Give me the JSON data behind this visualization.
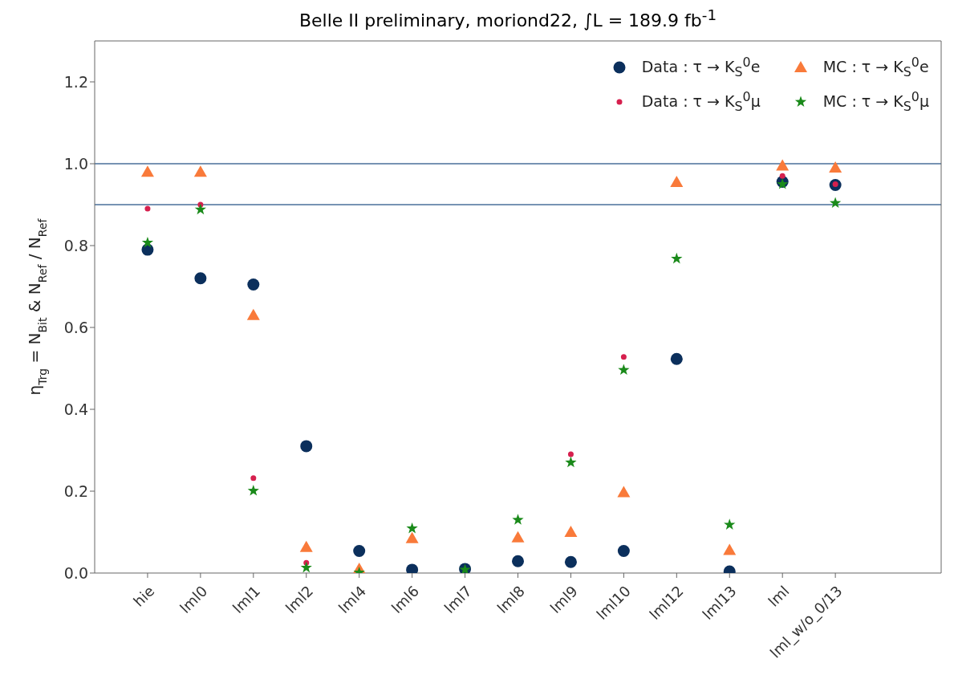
{
  "chart_data": {
    "type": "scatter",
    "title": "Belle II preliminary, moriond22, ∫L = 189.9 fb$^{-1}$",
    "ylabel": "η$_{Trg}$ = N$_{Bit}$ & N$_{Ref}$ / N$_{Ref}$",
    "categories": [
      "hie",
      "lml0",
      "lml1",
      "lml2",
      "lml4",
      "lml6",
      "lml7",
      "lml8",
      "lml9",
      "lml10",
      "lml12",
      "lml13",
      "lml",
      "lml_w/o_0/13"
    ],
    "ylim": [
      0,
      1.3
    ],
    "yticks": [
      {
        "value": 0,
        "label": "0.0"
      },
      0.2,
      0.4,
      0.6,
      0.8,
      {
        "value": 1,
        "label": "1.0"
      },
      1.2
    ],
    "grid": false,
    "legend": "top right",
    "ref_lines": [
      {
        "axis": "y",
        "value": 1.0,
        "color": "#4a6f9a"
      },
      {
        "axis": "y",
        "value": 0.9,
        "color": "#4a6f9a"
      }
    ],
    "series": [
      {
        "name": "Data : τ → K$_{S}$$^{0}$e",
        "color": "#0b2f5c",
        "marker": "circle",
        "values": [
          0.79,
          0.72,
          0.705,
          0.31,
          0.054,
          0.008,
          0.01,
          0.029,
          0.027,
          0.054,
          0.523,
          0.004,
          0.956,
          0.948
        ]
      },
      {
        "name": "Data : τ → K$_{S}$$^{0}$μ",
        "color": "#d6204e",
        "marker": "circle",
        "values": [
          0.89,
          0.9,
          0.232,
          0.025,
          null,
          null,
          null,
          null,
          0.29,
          0.528,
          null,
          null,
          0.97,
          0.95
        ]
      },
      {
        "name": "MC : τ → K$_{S}$$^{0}$e",
        "color": "#f97a3a",
        "marker": "triangle",
        "values": [
          0.98,
          0.98,
          0.63,
          0.063,
          0.01,
          0.085,
          null,
          0.087,
          0.1,
          0.197,
          0.955,
          0.056,
          0.995,
          0.99
        ]
      },
      {
        "name": "MC : τ → K$_{S}$$^{0}$μ",
        "color": "#1a8a1a",
        "marker": "star",
        "values": [
          0.807,
          0.888,
          0.201,
          0.013,
          0.001,
          0.109,
          0.008,
          0.13,
          0.27,
          0.496,
          0.768,
          0.118,
          0.95,
          0.904
        ]
      }
    ]
  }
}
